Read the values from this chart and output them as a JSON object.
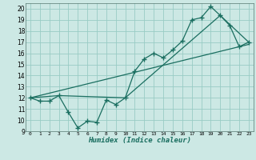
{
  "xlabel": "Humidex (Indice chaleur)",
  "bg_color": "#cce8e4",
  "grid_color": "#99ccc4",
  "line_color": "#1a6e60",
  "xlim": [
    -0.5,
    23.5
  ],
  "ylim": [
    9,
    20.5
  ],
  "xticks": [
    0,
    1,
    2,
    3,
    4,
    5,
    6,
    7,
    8,
    9,
    10,
    11,
    12,
    13,
    14,
    15,
    16,
    17,
    18,
    19,
    20,
    21,
    22,
    23
  ],
  "yticks": [
    9,
    10,
    11,
    12,
    13,
    14,
    15,
    16,
    17,
    18,
    19,
    20
  ],
  "line1_x": [
    0,
    1,
    2,
    3,
    4,
    5,
    6,
    7,
    8,
    9,
    10,
    11,
    12,
    13,
    14,
    15,
    16,
    17,
    18,
    19,
    20,
    21,
    22,
    23
  ],
  "line1_y": [
    12,
    11.7,
    11.7,
    12.2,
    10.7,
    9.3,
    9.9,
    9.8,
    11.8,
    11.4,
    12.0,
    14.4,
    15.5,
    16.0,
    15.6,
    16.3,
    17.1,
    19.0,
    19.2,
    20.2,
    19.4,
    18.5,
    16.6,
    17.0
  ],
  "line2_x": [
    0,
    3,
    10,
    20,
    23
  ],
  "line2_y": [
    12,
    12.2,
    12.0,
    19.4,
    17.0
  ],
  "line3_x": [
    0,
    23
  ],
  "line3_y": [
    12,
    16.8
  ]
}
